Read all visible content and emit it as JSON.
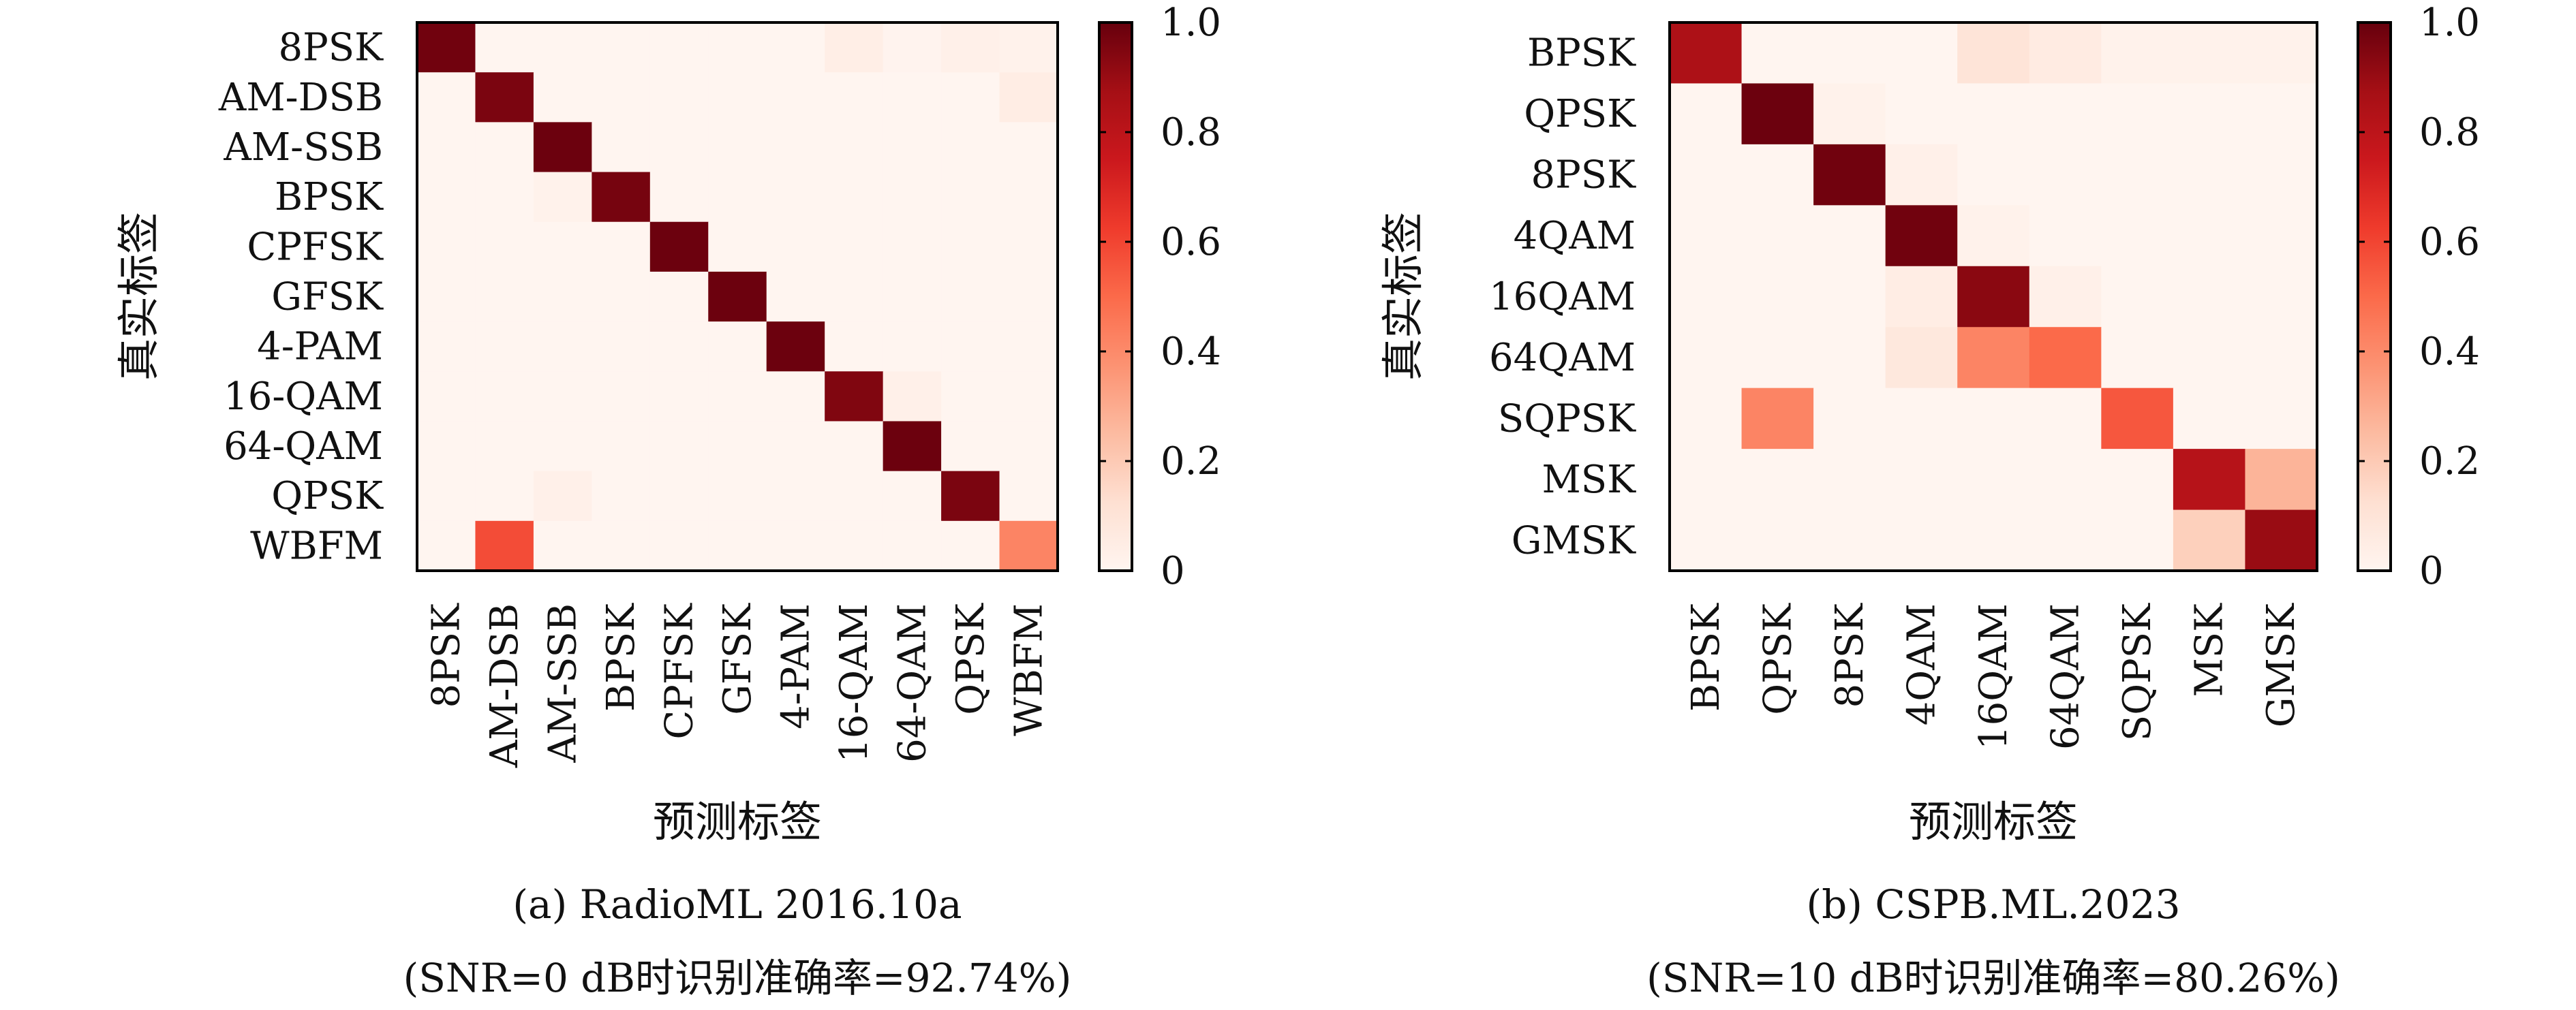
{
  "colors": {
    "colormap": [
      "#fff5f0",
      "#fee0d2",
      "#fcbba1",
      "#fc9272",
      "#fb6a4a",
      "#ef3b2c",
      "#cb181d",
      "#a50f15",
      "#67000d"
    ],
    "frame": "#000000"
  },
  "chart_data": [
    {
      "type": "heatmap",
      "title": "",
      "xlabel": "预测标签",
      "ylabel": "真实标签",
      "caption_line1": "(a) RadioML 2016.10a",
      "caption_line2": "(SNR=0 dB时识别准确率=92.74%)",
      "x_labels": [
        "8PSK",
        "AM-DSB",
        "AM-SSB",
        "BPSK",
        "CPFSK",
        "GFSK",
        "4-PAM",
        "16-QAM",
        "64-QAM",
        "QPSK",
        "WBFM"
      ],
      "y_labels": [
        "8PSK",
        "AM-DSB",
        "AM-SSB",
        "BPSK",
        "CPFSK",
        "GFSK",
        "4-PAM",
        "16-QAM",
        "64-QAM",
        "QPSK",
        "WBFM"
      ],
      "matrix": [
        [
          0.98,
          0.0,
          0.0,
          0.0,
          0.0,
          0.0,
          0.0,
          0.04,
          0.01,
          0.03,
          0.02
        ],
        [
          0.0,
          0.96,
          0.0,
          0.0,
          0.0,
          0.0,
          0.0,
          0.0,
          0.0,
          0.0,
          0.05
        ],
        [
          0.0,
          0.0,
          0.99,
          0.0,
          0.0,
          0.0,
          0.0,
          0.0,
          0.0,
          0.0,
          0.0
        ],
        [
          0.0,
          0.0,
          0.02,
          0.97,
          0.0,
          0.0,
          0.0,
          0.0,
          0.0,
          0.0,
          0.0
        ],
        [
          0.0,
          0.0,
          0.0,
          0.0,
          0.99,
          0.0,
          0.0,
          0.0,
          0.0,
          0.0,
          0.0
        ],
        [
          0.0,
          0.0,
          0.0,
          0.0,
          0.0,
          0.99,
          0.0,
          0.0,
          0.0,
          0.0,
          0.0
        ],
        [
          0.0,
          0.0,
          0.0,
          0.0,
          0.0,
          0.0,
          0.99,
          0.0,
          0.0,
          0.0,
          0.0
        ],
        [
          0.0,
          0.0,
          0.0,
          0.0,
          0.0,
          0.0,
          0.0,
          0.95,
          0.03,
          0.0,
          0.0
        ],
        [
          0.0,
          0.0,
          0.0,
          0.0,
          0.0,
          0.0,
          0.0,
          0.0,
          0.99,
          0.0,
          0.0
        ],
        [
          0.0,
          0.0,
          0.03,
          0.0,
          0.0,
          0.0,
          0.0,
          0.0,
          0.0,
          0.96,
          0.0
        ],
        [
          0.0,
          0.58,
          0.0,
          0.0,
          0.0,
          0.0,
          0.0,
          0.0,
          0.0,
          0.0,
          0.42
        ]
      ],
      "colorbar": {
        "ticks": [
          "0",
          "0.2",
          "0.4",
          "0.6",
          "0.8",
          "1.0"
        ],
        "range": [
          0,
          1
        ]
      }
    },
    {
      "type": "heatmap",
      "title": "",
      "xlabel": "预测标签",
      "ylabel": "真实标签",
      "caption_line1": "(b) CSPB.ML.2023",
      "caption_line2": "(SNR=10 dB时识别准确率=80.26%)",
      "x_labels": [
        "BPSK",
        "QPSK",
        "8PSK",
        "4QAM",
        "16QAM",
        "64QAM",
        "SQPSK",
        "MSK",
        "GMSK"
      ],
      "y_labels": [
        "BPSK",
        "QPSK",
        "8PSK",
        "4QAM",
        "16QAM",
        "64QAM",
        "SQPSK",
        "MSK",
        "GMSK"
      ],
      "matrix": [
        [
          0.85,
          0.0,
          0.0,
          0.0,
          0.1,
          0.06,
          0.02,
          0.02,
          0.02
        ],
        [
          0.0,
          0.99,
          0.02,
          0.0,
          0.0,
          0.0,
          0.0,
          0.0,
          0.0
        ],
        [
          0.0,
          0.0,
          0.98,
          0.03,
          0.0,
          0.0,
          0.0,
          0.0,
          0.0
        ],
        [
          0.0,
          0.0,
          0.0,
          0.98,
          0.02,
          0.0,
          0.0,
          0.0,
          0.0
        ],
        [
          0.0,
          0.0,
          0.0,
          0.05,
          0.93,
          0.03,
          0.0,
          0.0,
          0.0
        ],
        [
          0.0,
          0.0,
          0.0,
          0.08,
          0.42,
          0.5,
          0.0,
          0.0,
          0.0
        ],
        [
          0.0,
          0.42,
          0.0,
          0.0,
          0.0,
          0.0,
          0.55,
          0.0,
          0.0
        ],
        [
          0.0,
          0.0,
          0.0,
          0.0,
          0.0,
          0.0,
          0.0,
          0.82,
          0.27
        ],
        [
          0.0,
          0.0,
          0.0,
          0.0,
          0.0,
          0.0,
          0.0,
          0.18,
          0.9
        ]
      ],
      "colorbar": {
        "ticks": [
          "0",
          "0.2",
          "0.4",
          "0.6",
          "0.8",
          "1.0"
        ],
        "range": [
          0,
          1
        ]
      }
    }
  ]
}
